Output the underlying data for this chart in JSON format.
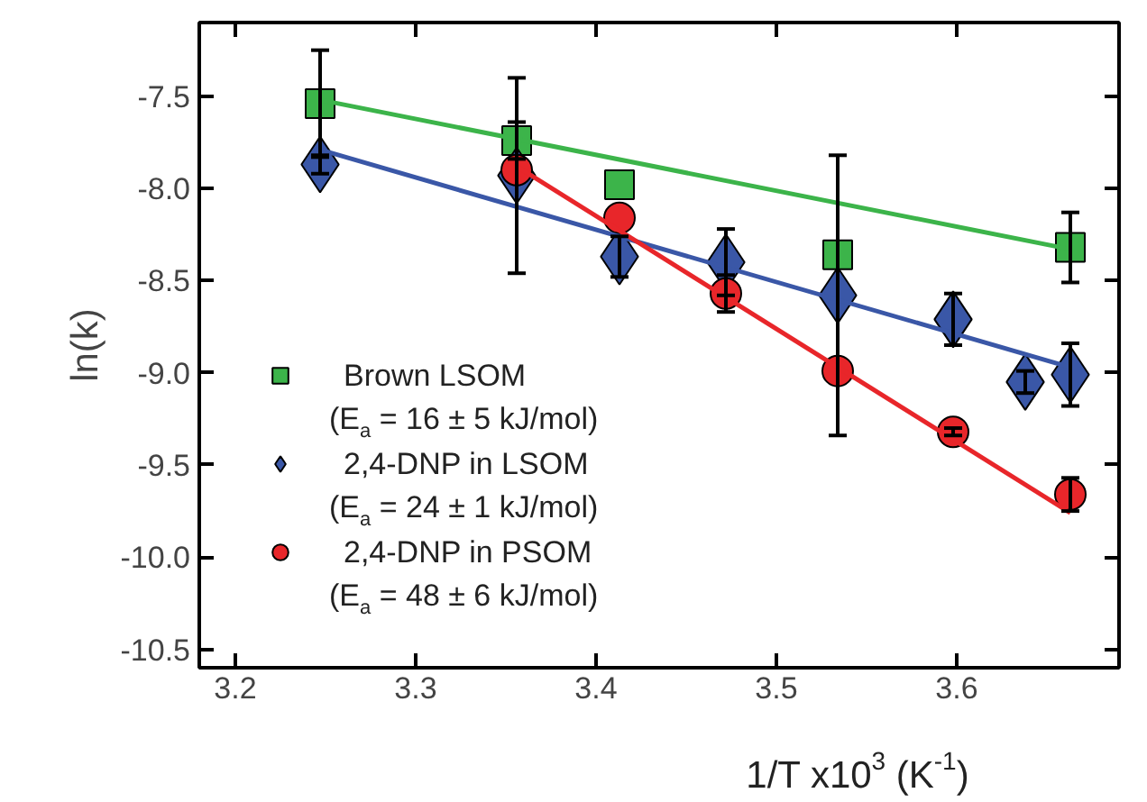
{
  "chart_data": {
    "type": "scatter",
    "xlabel": "1/T x10$^{3}$ (K$^{-1}$)",
    "ylabel": "ln(k)",
    "xlim": [
      3.18,
      3.69
    ],
    "ylim": [
      -10.6,
      -7.1
    ],
    "xticks": [
      3.2,
      3.3,
      3.4,
      3.5,
      3.6
    ],
    "yticks": [
      -7.5,
      {
        "value": -8,
        "label": "-8.0"
      },
      -8.5,
      {
        "value": -9,
        "label": "-9.0"
      },
      -9.5,
      {
        "value": -10,
        "label": "-10.0"
      },
      -10.5
    ],
    "grid": false,
    "legend": "bottom left",
    "series": [
      {
        "name": "Brown LSOM\n(E$_{a}$ = 16 ± 5 kJ/mol)",
        "color": "#3cb44a",
        "marker": "square",
        "x": [
          3.247,
          3.356,
          3.413,
          3.534,
          3.663
        ],
        "values": [
          -7.54,
          -7.74,
          -7.98,
          -8.36,
          -8.32
        ],
        "errors": [
          0.29,
          0.1,
          null,
          null,
          0.19
        ]
      },
      {
        "name": "2,4-DNP in LSOM\n(E$_{a}$ = 24 ± 1 kJ/mol)",
        "color": "#3a57a7",
        "marker": "diamond",
        "x": [
          3.247,
          3.356,
          3.413,
          3.472,
          3.534,
          3.598,
          3.638,
          3.663
        ],
        "values": [
          -7.87,
          -7.93,
          -8.37,
          -8.4,
          -8.58,
          -8.71,
          -9.05,
          -9.01
        ],
        "errors": [
          0.05,
          0.53,
          0.11,
          0.18,
          0.76,
          0.14,
          0.06,
          0.17
        ]
      },
      {
        "name": "2,4-DNP in PSOM\n(E$_{a}$ = 48 ± 6 kJ/mol)",
        "color": "#e8262a",
        "marker": "circle",
        "x": [
          3.356,
          3.413,
          3.472,
          3.534,
          3.598,
          3.663
        ],
        "values": [
          -7.9,
          -8.16,
          -8.57,
          -8.99,
          -9.32,
          -9.66
        ],
        "errors": [
          null,
          null,
          0.1,
          null,
          0.02,
          0.09
        ]
      },
      {
        "type": "line",
        "color": "#3cb44a",
        "x": [
          3.247,
          3.663
        ],
        "values": [
          -7.52,
          -8.33
        ]
      },
      {
        "type": "line",
        "color": "#3a57a7",
        "x": [
          3.247,
          3.663
        ],
        "values": [
          -7.79,
          -8.97
        ]
      },
      {
        "type": "line",
        "color": "#e8262a",
        "x": [
          3.356,
          3.663
        ],
        "values": [
          -7.88,
          -9.76
        ]
      }
    ]
  }
}
